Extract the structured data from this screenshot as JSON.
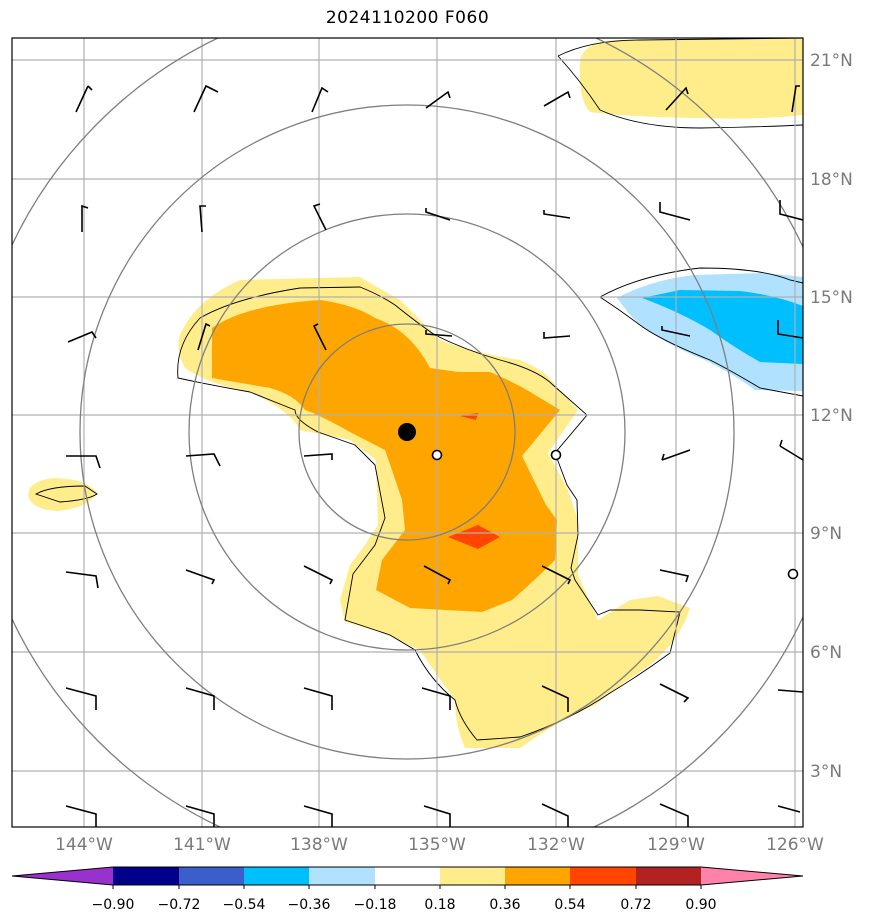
{
  "title": "2024110200 F060",
  "map": {
    "lon_labels": [
      "144°W",
      "141°W",
      "138°W",
      "135°W",
      "132°W",
      "129°W",
      "126°W"
    ],
    "lat_labels": [
      "21°N",
      "18°N",
      "15°N",
      "12°N",
      "9°N",
      "6°N",
      "3°N"
    ],
    "center_marker": "filled-dot"
  },
  "colorbar": {
    "tick_labels": [
      "−0.90",
      "−0.72",
      "−0.54",
      "−0.36",
      "−0.18",
      "0.18",
      "0.36",
      "0.54",
      "0.72",
      "0.90"
    ],
    "colors": [
      "#9932CC",
      "#00008B",
      "#3A5FCD",
      "#00BFFF",
      "#B0E2FF",
      "#FFFFFF",
      "#FFEC8B",
      "#FFA500",
      "#FF4500",
      "#B22222",
      "#FF82AB"
    ]
  }
}
